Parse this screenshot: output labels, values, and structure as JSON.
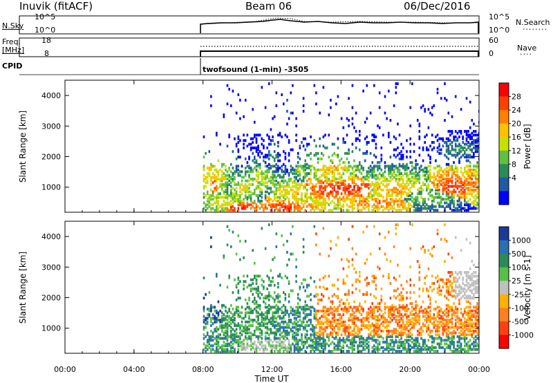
{
  "header": {
    "station": "Inuvik (fitACF)",
    "beam": "Beam 06",
    "date": "06/Dec/2016"
  },
  "top_panels": {
    "nsky_label": "N.Sky",
    "nsky_ticks": [
      "10^5",
      "10^0"
    ],
    "nsearch_label": "N.Search",
    "nsearch_ticks": [
      "10^5",
      "10^0"
    ],
    "freq_label": "Freq.",
    "freq_unit": "[MHz]",
    "freq_ticks": [
      "18",
      "8"
    ],
    "nave_label": "Nave",
    "nave_ticks": [
      "60",
      "0"
    ],
    "cpid_label": "CPID",
    "cpid_text": "twofsound (1-min) -3505"
  },
  "chart_data": [
    {
      "type": "heatmap",
      "name": "power",
      "ylabel": "Slant Range [km]",
      "colorbar_label": "Power [dB]",
      "colorbar_ticks": [
        "28",
        "24",
        "20",
        "16",
        "12",
        "8",
        "4"
      ],
      "colorbar_colors": [
        "#ff0000",
        "#ff4000",
        "#ff8000",
        "#ffc000",
        "#c8e000",
        "#60c040",
        "#2a8a5a",
        "#205aa0",
        "#0000ff"
      ],
      "ylim": [
        180,
        4500
      ],
      "yticks": [
        1000,
        2000,
        3000,
        4000
      ],
      "xlim": [
        0,
        24
      ],
      "data_start_hour": 8,
      "blobs": [
        {
          "t": 8.5,
          "r": 1250,
          "dt": 0.5,
          "dr": 300,
          "level": 2
        },
        {
          "t": 8.6,
          "r": 1100,
          "dt": 0.2,
          "dr": 250,
          "level": 0
        },
        {
          "t": 9.2,
          "r": 450,
          "dt": 1.2,
          "dr": 220,
          "level": 3
        },
        {
          "t": 10.0,
          "r": 330,
          "dt": 0.9,
          "dr": 150,
          "level": 0
        },
        {
          "t": 10.2,
          "r": 900,
          "dt": 0.5,
          "dr": 250,
          "level": 3
        },
        {
          "t": 11.3,
          "r": 1200,
          "dt": 0.6,
          "dr": 250,
          "level": 3
        },
        {
          "t": 12.8,
          "r": 300,
          "dt": 0.9,
          "dr": 180,
          "level": 0
        },
        {
          "t": 13.4,
          "r": 320,
          "dt": 0.9,
          "dr": 170,
          "level": 1
        },
        {
          "t": 13.2,
          "r": 800,
          "dt": 0.7,
          "dr": 200,
          "level": 2
        },
        {
          "t": 13.6,
          "r": 1500,
          "dt": 0.3,
          "dr": 200,
          "level": 4
        },
        {
          "t": 15.4,
          "r": 1550,
          "dt": 0.7,
          "dr": 250,
          "level": 2
        },
        {
          "t": 16.0,
          "r": 900,
          "dt": 1.6,
          "dr": 200,
          "level": 0
        },
        {
          "t": 18.2,
          "r": 450,
          "dt": 1.4,
          "dr": 160,
          "level": 1
        },
        {
          "t": 19.0,
          "r": 900,
          "dt": 1.3,
          "dr": 250,
          "level": 2
        },
        {
          "t": 21.0,
          "r": 600,
          "dt": 1.2,
          "dr": 200,
          "level": 4
        },
        {
          "t": 22.6,
          "r": 1000,
          "dt": 0.8,
          "dr": 250,
          "level": 0
        },
        {
          "t": 23.4,
          "r": 1100,
          "dt": 0.6,
          "dr": 300,
          "level": 1
        },
        {
          "t": 23.8,
          "r": 1400,
          "dt": 0.2,
          "dr": 200,
          "level": 3
        },
        {
          "t": 22.8,
          "r": 2200,
          "dt": 0.8,
          "dr": 200,
          "level": 5
        },
        {
          "t": 12.0,
          "r": 1900,
          "dt": 0.2,
          "dr": 300,
          "level": 5
        },
        {
          "t": 13.0,
          "r": 3600,
          "dt": 0.3,
          "dr": 300,
          "level": 6
        }
      ]
    },
    {
      "type": "heatmap",
      "name": "velocity",
      "ylabel": "Slant Range [km]",
      "colorbar_label": "Velocity [m s-1]",
      "colorbar_ticks": [
        "1000",
        "500",
        "100",
        "25",
        "-25",
        "-100",
        "-500",
        "-1000"
      ],
      "colorbar_colors": [
        "#1a3a9a",
        "#2a70b0",
        "#2a8a5a",
        "#58c048",
        "#c0c0c0",
        "#ffb000",
        "#ff8020",
        "#ff4010",
        "#ff0000"
      ],
      "ylim": [
        180,
        4500
      ],
      "yticks": [
        1000,
        2000,
        3000,
        4000
      ],
      "xlim": [
        0,
        24
      ],
      "xticks": [
        "00:00",
        "04:00",
        "08:00",
        "12:00",
        "16:00",
        "20:00",
        "00:00"
      ],
      "xlabel": "Time UT",
      "data_start_hour": 8
    }
  ]
}
